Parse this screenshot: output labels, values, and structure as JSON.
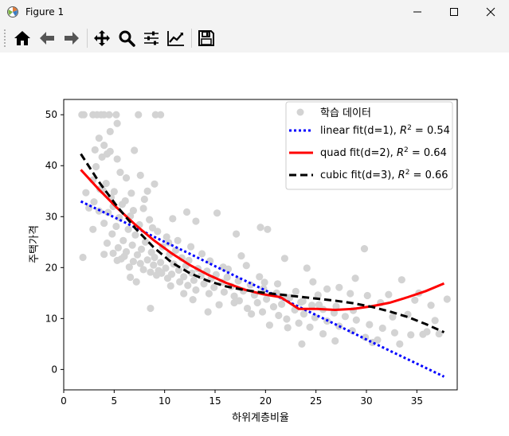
{
  "window": {
    "title": "Figure 1",
    "icon": "matplotlib-icon",
    "controls": [
      "minimize-icon",
      "maximize-icon",
      "close-icon"
    ]
  },
  "toolbar": {
    "buttons": [
      "home-icon",
      "back-arrow-icon",
      "forward-arrow-icon",
      "pan-icon",
      "zoom-icon",
      "configure-subplots-icon",
      "edit-axis-icon",
      "save-icon"
    ]
  },
  "chart_data": {
    "type": "scatter",
    "xlabel": "하위계층비율",
    "ylabel": "주택가격",
    "xlim": [
      0,
      39
    ],
    "ylim": [
      -4,
      53
    ],
    "xticks": [
      0,
      5,
      10,
      15,
      20,
      25,
      30,
      35
    ],
    "yticks": [
      0,
      10,
      20,
      30,
      40,
      50
    ],
    "grid": false,
    "legend_position": "top-right",
    "scatter": {
      "name": "학습 데이터",
      "color": "#d3d3d3",
      "points": [
        [
          1.8,
          50
        ],
        [
          2.0,
          50
        ],
        [
          2.9,
          50
        ],
        [
          3.3,
          50
        ],
        [
          3.7,
          50
        ],
        [
          4.0,
          50
        ],
        [
          4.5,
          50
        ],
        [
          5.2,
          50
        ],
        [
          7.4,
          50
        ],
        [
          9.1,
          50
        ],
        [
          9.6,
          50
        ],
        [
          5.3,
          48.3
        ],
        [
          4.6,
          46.7
        ],
        [
          3.5,
          45.4
        ],
        [
          4.0,
          44
        ],
        [
          3.1,
          43.1
        ],
        [
          4.6,
          42.8
        ],
        [
          3.8,
          41.7
        ],
        [
          5.3,
          41.3
        ],
        [
          3.2,
          39.8
        ],
        [
          7.0,
          43
        ],
        [
          2.9,
          37.2
        ],
        [
          4.2,
          36.5
        ],
        [
          3.6,
          35.4
        ],
        [
          5.0,
          34.9
        ],
        [
          2.2,
          34.7
        ],
        [
          6.7,
          34.6
        ],
        [
          4.7,
          33.8
        ],
        [
          6.1,
          33.1
        ],
        [
          3.0,
          32.9
        ],
        [
          5.8,
          32.4
        ],
        [
          4.9,
          32
        ],
        [
          7.9,
          31.6
        ],
        [
          3.5,
          31.1
        ],
        [
          4.4,
          30.8
        ],
        [
          6.6,
          30.1
        ],
        [
          5.5,
          29.8
        ],
        [
          8.5,
          29.4
        ],
        [
          4.0,
          28.7
        ],
        [
          7.5,
          28.4
        ],
        [
          5.2,
          28.1
        ],
        [
          6.4,
          27.5
        ],
        [
          9.3,
          27.1
        ],
        [
          4.8,
          26.6
        ],
        [
          7.1,
          26.4
        ],
        [
          10.2,
          26
        ],
        [
          5.9,
          25.3
        ],
        [
          8.1,
          25
        ],
        [
          4.3,
          24.8
        ],
        [
          6.8,
          24.4
        ],
        [
          9.8,
          24.1
        ],
        [
          5.4,
          23.9
        ],
        [
          7.7,
          23.6
        ],
        [
          11.1,
          23.4
        ],
        [
          6.2,
          23.1
        ],
        [
          8.7,
          23
        ],
        [
          4.9,
          22.8
        ],
        [
          10.5,
          22.6
        ],
        [
          7.3,
          22.5
        ],
        [
          6.0,
          22.2
        ],
        [
          9.0,
          22
        ],
        [
          11.7,
          21.9
        ],
        [
          5.7,
          21.7
        ],
        [
          8.3,
          21.5
        ],
        [
          12.4,
          21.4
        ],
        [
          6.9,
          21.2
        ],
        [
          9.6,
          21
        ],
        [
          7.6,
          20.8
        ],
        [
          10.9,
          20.7
        ],
        [
          8.9,
          20.5
        ],
        [
          12.1,
          20.3
        ],
        [
          6.5,
          20.1
        ],
        [
          10.1,
          19.9
        ],
        [
          13.3,
          19.8
        ],
        [
          7.9,
          19.6
        ],
        [
          11.4,
          19.5
        ],
        [
          9.4,
          19.4
        ],
        [
          14.2,
          19.3
        ],
        [
          8.6,
          19.1
        ],
        [
          12.7,
          18.9
        ],
        [
          10.7,
          18.7
        ],
        [
          15.1,
          18.6
        ],
        [
          9.2,
          18.5
        ],
        [
          13.6,
          18.4
        ],
        [
          11.9,
          18.2
        ],
        [
          16.2,
          18.1
        ],
        [
          10.3,
          17.9
        ],
        [
          14.6,
          17.8
        ],
        [
          12.9,
          17.5
        ],
        [
          17.3,
          17.4
        ],
        [
          11.5,
          17.2
        ],
        [
          15.7,
          17.1
        ],
        [
          13.9,
          16.8
        ],
        [
          18.5,
          16.6
        ],
        [
          12.3,
          16.5
        ],
        [
          16.6,
          16.3
        ],
        [
          14.9,
          16.1
        ],
        [
          19.8,
          15.9
        ],
        [
          13.1,
          15.6
        ],
        [
          17.8,
          15.4
        ],
        [
          15.9,
          15.2
        ],
        [
          21.1,
          15
        ],
        [
          14.4,
          14.9
        ],
        [
          18.9,
          14.6
        ],
        [
          16.9,
          14.4
        ],
        [
          22.4,
          14.1
        ],
        [
          20.1,
          13.8
        ],
        [
          17.4,
          13.5
        ],
        [
          23.7,
          13.4
        ],
        [
          19.2,
          13.1
        ],
        [
          21.6,
          12.8
        ],
        [
          15.4,
          12.7
        ],
        [
          24.6,
          12.6
        ],
        [
          20.8,
          12.3
        ],
        [
          18.2,
          12
        ],
        [
          25.7,
          11.8
        ],
        [
          22.9,
          11.7
        ],
        [
          19.7,
          11.3
        ],
        [
          26.8,
          11.1
        ],
        [
          23.8,
          10.9
        ],
        [
          21.3,
          10.6
        ],
        [
          27.9,
          10.4
        ],
        [
          24.9,
          10.2
        ],
        [
          22.1,
          9.9
        ],
        [
          29.0,
          9.7
        ],
        [
          26.1,
          9.5
        ],
        [
          23.3,
          9.1
        ],
        [
          30.3,
          8.8
        ],
        [
          27.3,
          8.5
        ],
        [
          24.4,
          8.3
        ],
        [
          31.6,
          8.1
        ],
        [
          28.6,
          7.6
        ],
        [
          32.8,
          7.2
        ],
        [
          25.7,
          7
        ],
        [
          29.9,
          6.3
        ],
        [
          34.4,
          6.8
        ],
        [
          31.1,
          5.8
        ],
        [
          26.9,
          5.6
        ],
        [
          33.3,
          5
        ],
        [
          23.6,
          5
        ],
        [
          36.0,
          7.4
        ],
        [
          30.6,
          5.3
        ],
        [
          37.2,
          7
        ],
        [
          38.0,
          13.8
        ],
        [
          35.2,
          15
        ],
        [
          33.5,
          17.6
        ],
        [
          29.8,
          23.7
        ],
        [
          28.4,
          14.9
        ],
        [
          24.1,
          19.9
        ],
        [
          21.9,
          21.8
        ],
        [
          20.2,
          27.5
        ],
        [
          19.5,
          27.9
        ],
        [
          17.1,
          26.6
        ],
        [
          15.2,
          30.7
        ],
        [
          13.1,
          29.1
        ],
        [
          12.2,
          30.9
        ],
        [
          10.8,
          29.6
        ],
        [
          8.3,
          35
        ],
        [
          9.0,
          36.4
        ],
        [
          6.2,
          37.6
        ],
        [
          7.6,
          38.1
        ],
        [
          5.6,
          38.7
        ],
        [
          4.3,
          42.3
        ],
        [
          8.0,
          33.4
        ],
        [
          2.9,
          27.5
        ],
        [
          1.9,
          22
        ],
        [
          10.6,
          16.4
        ],
        [
          11.9,
          14.9
        ],
        [
          14.3,
          11.3
        ],
        [
          8.6,
          12
        ],
        [
          16.9,
          13.1
        ],
        [
          18.6,
          10.9
        ],
        [
          20.4,
          8.7
        ],
        [
          22.2,
          8.2
        ],
        [
          25.3,
          12.7
        ],
        [
          27.3,
          16.1
        ],
        [
          28.9,
          17.9
        ],
        [
          31.4,
          13.1
        ],
        [
          34.1,
          10.8
        ],
        [
          36.4,
          12.6
        ],
        [
          13.7,
          22.7
        ],
        [
          15.8,
          20.1
        ],
        [
          17.6,
          22.3
        ],
        [
          19.4,
          18.2
        ],
        [
          21.2,
          16.8
        ],
        [
          23.0,
          15.3
        ],
        [
          26.1,
          15.8
        ],
        [
          11.3,
          25.3
        ],
        [
          9.7,
          18.9
        ],
        [
          7.2,
          17.2
        ],
        [
          5.3,
          21.4
        ],
        [
          6.6,
          18.1
        ],
        [
          4.0,
          22.6
        ],
        [
          12.8,
          13.7
        ],
        [
          24.7,
          17.2
        ],
        [
          30.1,
          14.5
        ],
        [
          32.6,
          10.3
        ],
        [
          35.6,
          6.9
        ],
        [
          2.5,
          31.7
        ],
        [
          3.9,
          35.1
        ],
        [
          6.9,
          31.2
        ],
        [
          8.8,
          27.8
        ],
        [
          10.4,
          24.9
        ],
        [
          12.6,
          24.1
        ],
        [
          14.5,
          21.3
        ],
        [
          16.3,
          19.7
        ],
        [
          18.1,
          20.4
        ],
        [
          19.9,
          17.1
        ],
        [
          21.7,
          14.2
        ],
        [
          23.5,
          13.2
        ],
        [
          25.2,
          14.6
        ],
        [
          27.0,
          12.4
        ],
        [
          28.7,
          11.6
        ],
        [
          32.2,
          14.7
        ],
        [
          34.8,
          13.6
        ],
        [
          36.8,
          9.6
        ]
      ]
    },
    "series": [
      {
        "name": "linear fit(d=1), R² = 0.54",
        "color": "#0000ff",
        "style": "dotted",
        "x": [
          1.7,
          5.3,
          8.9,
          12.5,
          16.1,
          19.7,
          23.3,
          26.9,
          30.5,
          34.1,
          37.7
        ],
        "y": [
          33.0,
          29.6,
          26.1,
          22.7,
          19.2,
          15.8,
          12.3,
          8.9,
          5.4,
          2.0,
          -1.4
        ]
      },
      {
        "name": "quad fit(d=2), R² = 0.64",
        "color": "#ff0000",
        "style": "solid",
        "x": [
          1.7,
          3.5,
          5.3,
          7.1,
          8.9,
          10.7,
          12.5,
          14.3,
          16.1,
          17.9,
          19.7,
          21.5,
          23.3,
          25.1,
          26.9,
          28.7,
          30.5,
          32.3,
          34.1,
          35.9,
          37.7
        ],
        "y": [
          39.2,
          35.3,
          31.7,
          28.4,
          25.4,
          22.8,
          20.5,
          18.6,
          17.0,
          15.7,
          14.8,
          14.2,
          11.9,
          11.9,
          11.7,
          11.9,
          12.4,
          13.1,
          14.2,
          15.4,
          16.9
        ]
      },
      {
        "name": "cubic fit(d=3), R² = 0.66",
        "color": "#000000",
        "style": "dashed",
        "x": [
          1.7,
          3.5,
          5.3,
          7.1,
          8.9,
          10.7,
          12.5,
          14.3,
          16.1,
          17.9,
          19.7,
          21.5,
          23.3,
          25.1,
          26.9,
          28.7,
          30.5,
          32.3,
          34.1,
          35.9,
          37.7
        ],
        "y": [
          42.3,
          36.8,
          32.0,
          27.7,
          24.0,
          21.0,
          18.9,
          17.4,
          16.3,
          15.6,
          15.1,
          14.7,
          14.3,
          13.9,
          13.5,
          13.0,
          12.3,
          11.4,
          10.3,
          8.9,
          7.3
        ]
      }
    ],
    "legend": {
      "items": [
        {
          "kind": "marker",
          "label": "학습 데이터",
          "r2": ""
        },
        {
          "kind": "line",
          "label": "linear fit(d=1), ",
          "r2": "0.54"
        },
        {
          "kind": "line",
          "label": "quad fit(d=2), ",
          "r2": "0.64"
        },
        {
          "kind": "line",
          "label": "cubic fit(d=3), ",
          "r2": "0.66"
        }
      ]
    }
  }
}
